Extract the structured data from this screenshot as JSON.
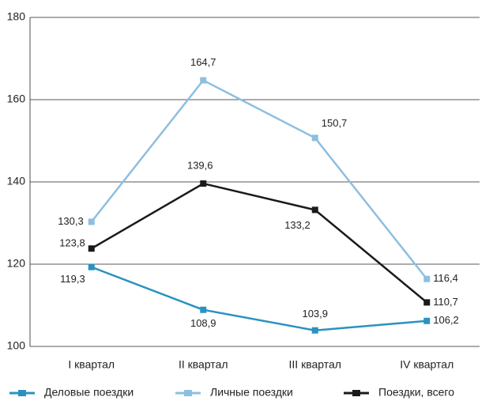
{
  "chart_data": {
    "type": "line",
    "categories": [
      "I квартал",
      "II квартал",
      "III квартал",
      "IV квартал"
    ],
    "series": [
      {
        "name": "Деловые поездки",
        "color": "#2a92bf",
        "values": [
          119.3,
          108.9,
          103.9,
          106.2
        ],
        "value_labels": [
          "119,3",
          "108,9",
          "103,9",
          "106,2"
        ]
      },
      {
        "name": "Личные поездки",
        "color": "#8dbfe0",
        "values": [
          130.3,
          164.7,
          150.7,
          116.4
        ],
        "value_labels": [
          "130,3",
          "164,7",
          "150,7",
          "116,4"
        ]
      },
      {
        "name": "Поездки, всего",
        "color": "#1a1a1a",
        "values": [
          123.8,
          139.6,
          133.2,
          110.7
        ],
        "value_labels": [
          "123,8",
          "139,6",
          "133,2",
          "110,7"
        ]
      }
    ],
    "ylim": [
      100,
      180
    ],
    "yticks": [
      100,
      120,
      140,
      160,
      180
    ],
    "grid": true
  }
}
